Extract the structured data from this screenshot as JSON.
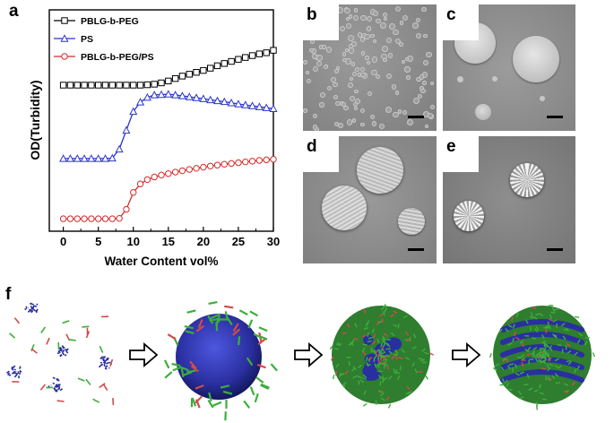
{
  "panel_labels": {
    "a": "a",
    "b": "b",
    "c": "c",
    "d": "d",
    "e": "e",
    "f": "f"
  },
  "chart_data": {
    "type": "line",
    "xlabel": "Water Content vol%",
    "ylabel": "OD(Turbidity)",
    "xlim": [
      -2,
      30
    ],
    "xticks": [
      "0",
      "5",
      "10",
      "15",
      "20",
      "25",
      "30"
    ],
    "yticks_visible": false,
    "grid": false,
    "legend_position": "top-left",
    "x": [
      0,
      1,
      2,
      3,
      4,
      5,
      6,
      7,
      8,
      9,
      10,
      11,
      12,
      13,
      14,
      15,
      16,
      17,
      18,
      19,
      20,
      21,
      22,
      23,
      24,
      25,
      26,
      27,
      28,
      29,
      30
    ],
    "series": [
      {
        "name": "PBLG-b-PEG",
        "color": "#000000",
        "marker": "square",
        "values": [
          0.7,
          0.7,
          0.7,
          0.7,
          0.7,
          0.7,
          0.7,
          0.7,
          0.7,
          0.7,
          0.7,
          0.7,
          0.702,
          0.705,
          0.712,
          0.722,
          0.735,
          0.748,
          0.758,
          0.768,
          0.778,
          0.79,
          0.803,
          0.815,
          0.826,
          0.837,
          0.847,
          0.857,
          0.866,
          0.872,
          0.885
        ]
      },
      {
        "name": "PS",
        "color": "#2b35c8",
        "marker": "triangle",
        "values": [
          0.31,
          0.31,
          0.31,
          0.31,
          0.31,
          0.31,
          0.31,
          0.312,
          0.36,
          0.46,
          0.56,
          0.61,
          0.635,
          0.648,
          0.65,
          0.652,
          0.648,
          0.643,
          0.638,
          0.633,
          0.628,
          0.622,
          0.617,
          0.612,
          0.606,
          0.6,
          0.595,
          0.59,
          0.585,
          0.58,
          0.575
        ]
      },
      {
        "name": "PBLG-b-PEG/PS",
        "color": "#d82a2a",
        "marker": "circle",
        "values": [
          -0.01,
          -0.01,
          -0.01,
          -0.01,
          -0.01,
          -0.01,
          -0.01,
          -0.01,
          -0.008,
          0.04,
          0.13,
          0.175,
          0.198,
          0.212,
          0.222,
          0.23,
          0.238,
          0.245,
          0.252,
          0.258,
          0.264,
          0.27,
          0.275,
          0.28,
          0.284,
          0.288,
          0.292,
          0.296,
          0.3,
          0.303,
          0.306
        ]
      }
    ]
  },
  "colors": {
    "sem_background": "#8a8a8a",
    "sphere_fill": "#d4d4d4",
    "globule_blue": "#2a2fa0",
    "polymer_green": "#3cae3c",
    "polymer_red": "#d24a4a",
    "arrow": "#000000"
  },
  "icons": {
    "process_arrow": "hollow-right-arrow-icon"
  }
}
